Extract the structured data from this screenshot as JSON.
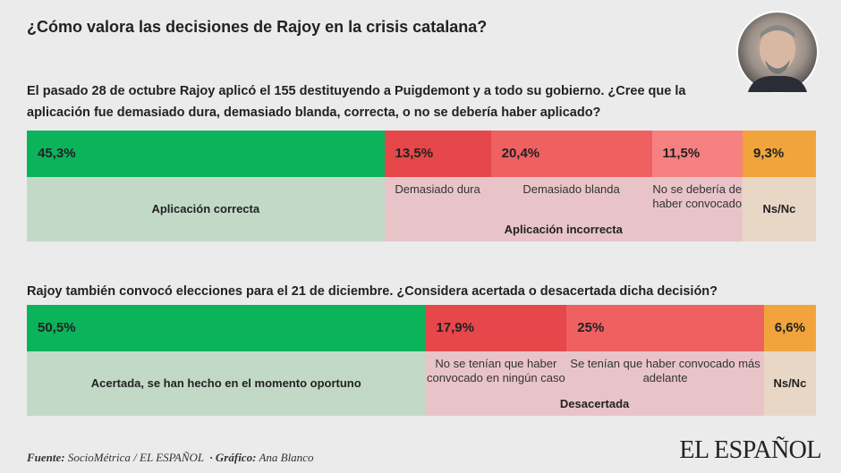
{
  "title": "¿Cómo valora las decisiones de Rajoy en la crisis catalana?",
  "chart_data": [
    {
      "type": "stacked-bar",
      "title": "El pasado 28 de octubre Rajoy aplicó el 155 destituyendo a Puigdemont y a todo su gobierno. ¿Cree que la aplicación fue demasiado dura, demasiado blanda, correcta, o no se debería haber aplicado?",
      "xlim": [
        0,
        100
      ],
      "groups": [
        {
          "name": "Aplicación correcta",
          "color": "#c3d9c8",
          "series": [
            {
              "color": "#0bb35b",
              "values": [
                45.3
              ],
              "value_labels": [
                "45,3%"
              ]
            }
          ]
        },
        {
          "name": "Aplicación incorrecta",
          "color": "#e8c4c8",
          "series": [
            {
              "name": "Demasiado dura",
              "color": "#e5474a",
              "values": [
                13.5
              ],
              "value_labels": [
                "13,5%"
              ]
            },
            {
              "name": "Demasiado blanda",
              "color": "#ef6061",
              "values": [
                20.4
              ],
              "value_labels": [
                "20,4%"
              ]
            },
            {
              "name": "No se debería de haber convocado",
              "color": "#f68181",
              "values": [
                11.5
              ],
              "value_labels": [
                "11,5%"
              ]
            }
          ]
        },
        {
          "name": "Ns/Nc",
          "color": "#e9d7c6",
          "series": [
            {
              "color": "#f0a43b",
              "values": [
                9.3
              ],
              "value_labels": [
                "9,3%"
              ]
            }
          ]
        }
      ]
    },
    {
      "type": "stacked-bar",
      "title": "Rajoy también convocó elecciones para el 21 de diciembre. ¿Considera acertada o desacertada dicha decisión?",
      "xlim": [
        0,
        100
      ],
      "groups": [
        {
          "name": "Acertada, se han hecho en el momento oportuno",
          "color": "#c3d9c8",
          "series": [
            {
              "color": "#0bb35b",
              "values": [
                50.5
              ],
              "value_labels": [
                "50,5%"
              ]
            }
          ]
        },
        {
          "name": "Desacertada",
          "color": "#e8c4c8",
          "series": [
            {
              "name": "No se tenían que haber convocado en ningún caso",
              "color": "#e5474a",
              "values": [
                17.9
              ],
              "value_labels": [
                "17,9%"
              ]
            },
            {
              "name": "Se tenían que haber convocado más adelante",
              "color": "#ef6061",
              "values": [
                25
              ],
              "value_labels": [
                "25%"
              ]
            }
          ]
        },
        {
          "name": "Ns/Nc",
          "color": "#e9d7c6",
          "series": [
            {
              "color": "#f0a43b",
              "values": [
                6.6
              ],
              "value_labels": [
                "6,6%"
              ]
            }
          ]
        }
      ]
    }
  ],
  "footer": {
    "source_label": "Fuente:",
    "source": "SocioMétrica / EL ESPAÑOL",
    "graphic_label": "· Gráfico:",
    "graphic": "Ana Blanco"
  },
  "logo": "EL ESPAÑOL"
}
